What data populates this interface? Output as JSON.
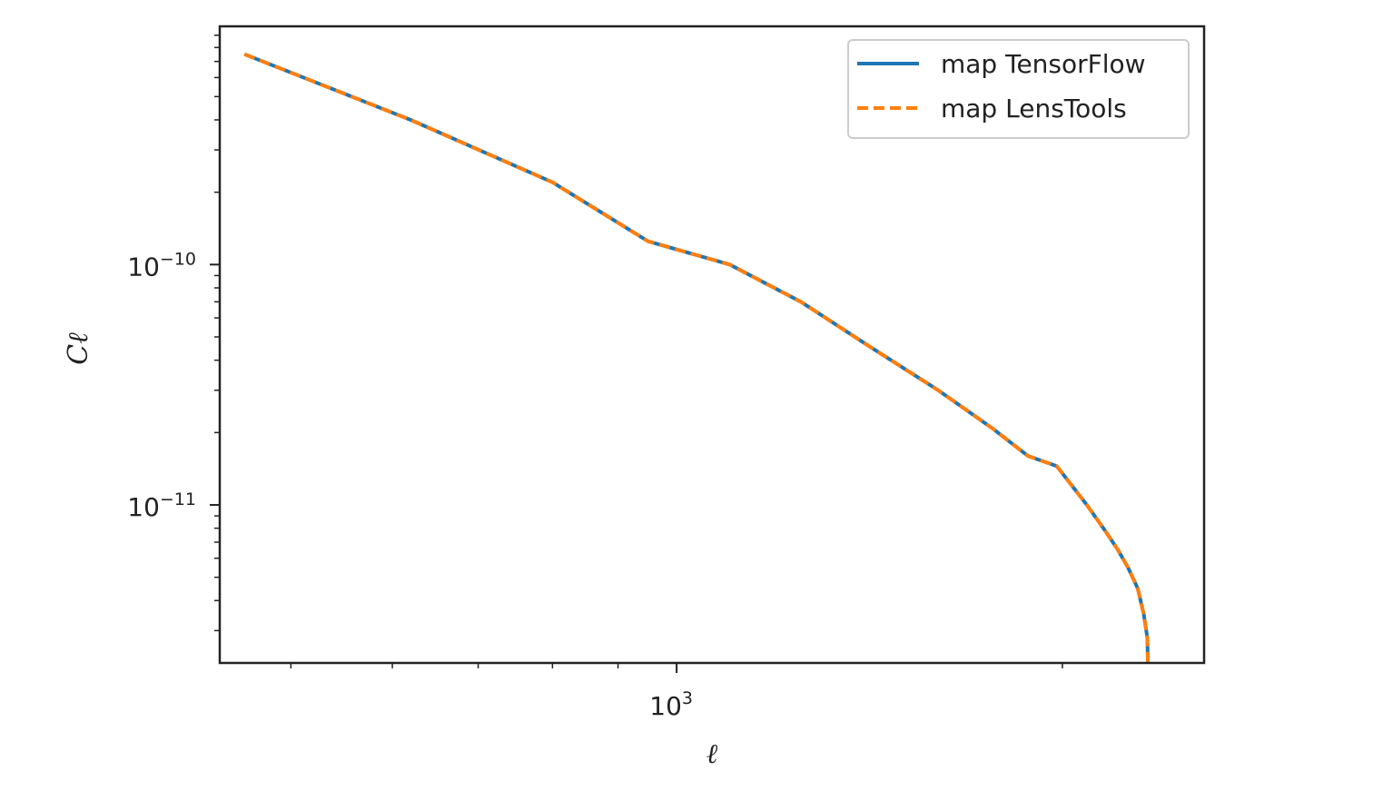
{
  "chart_data": {
    "type": "line",
    "xlabel": "ℓ",
    "ylabel": "Cℓ",
    "x_scale": "log",
    "y_scale": "log",
    "xlim": [
      440,
      2580
    ],
    "ylim": [
      2.2e-12,
      9.8e-10
    ],
    "x_ticks": [
      {
        "value": 1000,
        "base": "10",
        "exp": "3"
      }
    ],
    "y_ticks": [
      {
        "value": 1e-10,
        "base": "10",
        "exp": "−10"
      },
      {
        "value": 1e-11,
        "base": "10",
        "exp": "−11"
      }
    ],
    "grid": false,
    "legend_position": "top-right",
    "series": [
      {
        "name": "map TensorFlow",
        "color": "#1f77b4",
        "linestyle": "solid",
        "x": [
          460,
          620,
          800,
          950,
          1100,
          1250,
          1420,
          1600,
          1760,
          1880,
          1980,
          2090,
          2160,
          2210,
          2250,
          2290,
          2315,
          2330,
          2332
        ],
        "y": [
          7.5e-10,
          4e-10,
          2.2e-10,
          1.25e-10,
          1e-10,
          7e-11,
          4.5e-11,
          3e-11,
          2.1e-11,
          1.6e-11,
          1.45e-11,
          1e-11,
          7.8e-12,
          6.5e-12,
          5.5e-12,
          4.5e-12,
          3.5e-12,
          2.8e-12,
          2.2e-12
        ]
      },
      {
        "name": "map LensTools",
        "color": "#ff7f0e",
        "linestyle": "dashed",
        "x": [
          460,
          620,
          800,
          950,
          1100,
          1250,
          1420,
          1600,
          1760,
          1880,
          1980,
          2090,
          2160,
          2210,
          2250,
          2290,
          2315,
          2330,
          2332
        ],
        "y": [
          7.5e-10,
          4e-10,
          2.2e-10,
          1.25e-10,
          1e-10,
          7e-11,
          4.5e-11,
          3e-11,
          2.1e-11,
          1.6e-11,
          1.45e-11,
          1e-11,
          7.8e-12,
          6.5e-12,
          5.5e-12,
          4.5e-12,
          3.5e-12,
          2.8e-12,
          2.2e-12
        ]
      }
    ]
  }
}
